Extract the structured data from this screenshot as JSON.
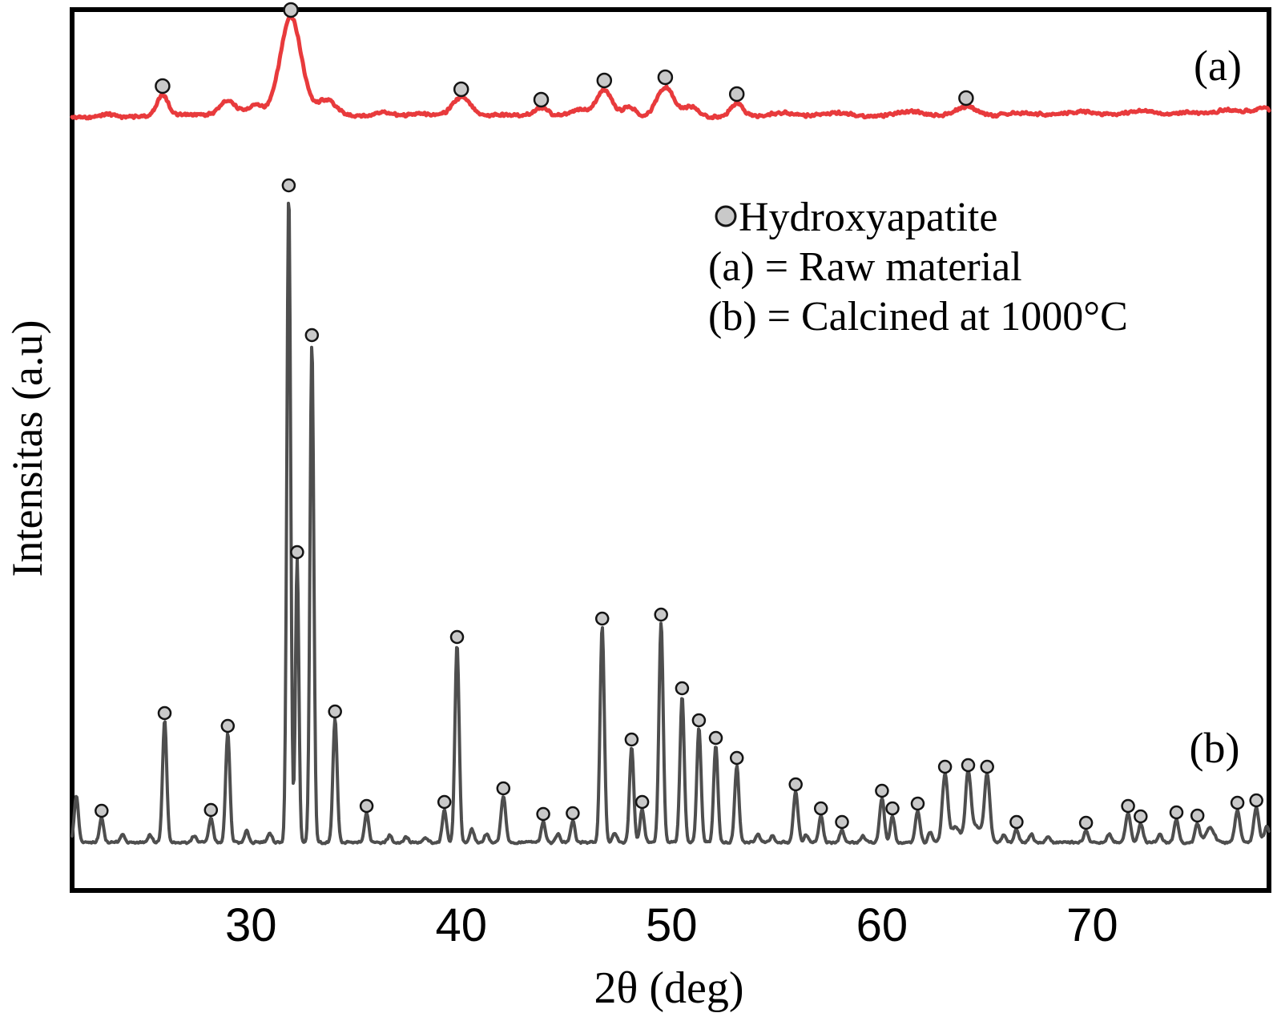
{
  "figure": {
    "panel_a_label": "(a)",
    "panel_b_label": "(b)"
  },
  "legend": {
    "marker_label": "Hydroxyapatite",
    "line_a": "(a) = Raw material",
    "line_b": "(b) = Calcined at 1000°C"
  },
  "chart_data": {
    "type": "line",
    "title": "",
    "xlabel": "2θ (deg)",
    "ylabel": "Intensitas (a.u)",
    "x_axis": {
      "min": 21.5,
      "max": 78.4,
      "ticks": [
        30,
        40,
        50,
        60,
        70
      ]
    },
    "y_axis": {
      "units": "arbitrary intensity",
      "tick_labels": "none",
      "grid": false
    },
    "legend_position": "upper middle-right inside plot",
    "marker_meaning": "gray circle = Hydroxyapatite peak",
    "peak_columns": [
      "two_theta_deg",
      "intensity_au",
      "sigma_deg",
      "hydroxyapatite_marker"
    ],
    "series": [
      {
        "id": "a",
        "name": "Raw material",
        "plot_label": "(a)",
        "color": "#e83a3c",
        "peaks": [
          [
            23.2,
            4,
            0.3,
            0
          ],
          [
            25.8,
            27,
            0.26,
            1
          ],
          [
            28.9,
            18,
            0.35,
            0
          ],
          [
            30.2,
            12,
            0.35,
            0
          ],
          [
            31.9,
            122,
            0.5,
            1
          ],
          [
            33.6,
            20,
            0.45,
            0
          ],
          [
            36.3,
            5,
            0.5,
            0
          ],
          [
            38.0,
            4,
            0.4,
            0
          ],
          [
            40.0,
            23,
            0.42,
            1
          ],
          [
            43.8,
            10,
            0.3,
            1
          ],
          [
            45.6,
            8,
            0.4,
            0
          ],
          [
            46.8,
            34,
            0.38,
            1
          ],
          [
            48.0,
            14,
            0.3,
            0
          ],
          [
            49.7,
            38,
            0.42,
            1
          ],
          [
            50.9,
            13,
            0.35,
            0
          ],
          [
            53.1,
            17,
            0.3,
            1
          ],
          [
            55.2,
            4,
            0.5,
            0
          ],
          [
            58.0,
            4,
            0.6,
            0
          ],
          [
            61.4,
            7,
            0.7,
            0
          ],
          [
            64.0,
            12,
            0.55,
            1
          ],
          [
            66.5,
            3,
            0.6,
            0
          ],
          [
            69.5,
            3,
            0.6,
            0
          ],
          [
            72.4,
            6,
            0.6,
            0
          ],
          [
            74.5,
            5,
            0.5,
            0
          ],
          [
            76.5,
            8,
            0.8,
            0
          ],
          [
            78.2,
            9,
            0.5,
            0
          ]
        ]
      },
      {
        "id": "b",
        "name": "Calcined at 1000°C",
        "plot_label": "(b)",
        "color": "#4e4e4e",
        "peaks": [
          [
            21.7,
            58,
            0.1,
            0
          ],
          [
            22.9,
            30,
            0.1,
            1
          ],
          [
            23.9,
            10,
            0.1,
            0
          ],
          [
            25.2,
            10,
            0.1,
            0
          ],
          [
            25.9,
            152,
            0.1,
            1
          ],
          [
            27.3,
            8,
            0.1,
            0
          ],
          [
            28.1,
            31,
            0.1,
            1
          ],
          [
            28.9,
            136,
            0.1,
            1
          ],
          [
            29.8,
            14,
            0.1,
            0
          ],
          [
            30.9,
            12,
            0.1,
            0
          ],
          [
            31.8,
            811,
            0.09,
            1
          ],
          [
            32.2,
            353,
            0.08,
            1
          ],
          [
            32.9,
            624,
            0.09,
            1
          ],
          [
            34.0,
            154,
            0.1,
            1
          ],
          [
            35.5,
            36,
            0.1,
            1
          ],
          [
            36.6,
            9,
            0.1,
            0
          ],
          [
            37.4,
            7,
            0.1,
            0
          ],
          [
            38.3,
            6,
            0.1,
            0
          ],
          [
            39.2,
            41,
            0.1,
            1
          ],
          [
            39.8,
            247,
            0.1,
            1
          ],
          [
            40.5,
            16,
            0.11,
            0
          ],
          [
            41.2,
            10,
            0.1,
            0
          ],
          [
            42.0,
            58,
            0.11,
            1
          ],
          [
            43.9,
            26,
            0.1,
            1
          ],
          [
            44.6,
            11,
            0.1,
            0
          ],
          [
            45.3,
            27,
            0.1,
            1
          ],
          [
            46.7,
            270,
            0.1,
            1
          ],
          [
            47.3,
            12,
            0.1,
            0
          ],
          [
            48.1,
            119,
            0.1,
            1
          ],
          [
            48.6,
            41,
            0.1,
            1
          ],
          [
            49.5,
            275,
            0.1,
            1
          ],
          [
            50.5,
            183,
            0.1,
            1
          ],
          [
            51.3,
            143,
            0.1,
            1
          ],
          [
            52.1,
            121,
            0.1,
            1
          ],
          [
            53.1,
            96,
            0.1,
            1
          ],
          [
            54.1,
            10,
            0.1,
            0
          ],
          [
            54.8,
            8,
            0.1,
            0
          ],
          [
            55.9,
            63,
            0.11,
            1
          ],
          [
            56.4,
            9,
            0.1,
            0
          ],
          [
            57.1,
            33,
            0.1,
            1
          ],
          [
            58.1,
            16,
            0.1,
            1
          ],
          [
            59.1,
            8,
            0.1,
            0
          ],
          [
            60.0,
            55,
            0.11,
            1
          ],
          [
            60.5,
            33,
            0.1,
            1
          ],
          [
            61.7,
            39,
            0.11,
            1
          ],
          [
            62.3,
            13,
            0.1,
            0
          ],
          [
            63.0,
            85,
            0.13,
            1
          ],
          [
            63.5,
            20,
            0.2,
            0
          ],
          [
            64.1,
            87,
            0.13,
            1
          ],
          [
            64.5,
            20,
            0.2,
            0
          ],
          [
            65.0,
            85,
            0.13,
            1
          ],
          [
            65.8,
            10,
            0.1,
            0
          ],
          [
            66.4,
            16,
            0.1,
            1
          ],
          [
            67.1,
            11,
            0.1,
            0
          ],
          [
            67.9,
            7,
            0.1,
            0
          ],
          [
            69.7,
            15,
            0.1,
            1
          ],
          [
            70.8,
            11,
            0.1,
            0
          ],
          [
            71.7,
            36,
            0.12,
            1
          ],
          [
            72.3,
            23,
            0.11,
            1
          ],
          [
            73.2,
            10,
            0.1,
            0
          ],
          [
            74.0,
            28,
            0.11,
            1
          ],
          [
            75.0,
            24,
            0.11,
            1
          ],
          [
            75.6,
            18,
            0.2,
            0
          ],
          [
            76.9,
            40,
            0.12,
            1
          ],
          [
            77.8,
            43,
            0.12,
            1
          ],
          [
            78.3,
            20,
            0.12,
            0
          ]
        ]
      }
    ]
  },
  "style": {
    "curve_a_color": "#e83a3c",
    "curve_b_color": "#4e4e4e",
    "marker_fill": "#c9c9c9",
    "marker_stroke": "#141414",
    "frame_color": "#000000",
    "background": "#ffffff"
  }
}
